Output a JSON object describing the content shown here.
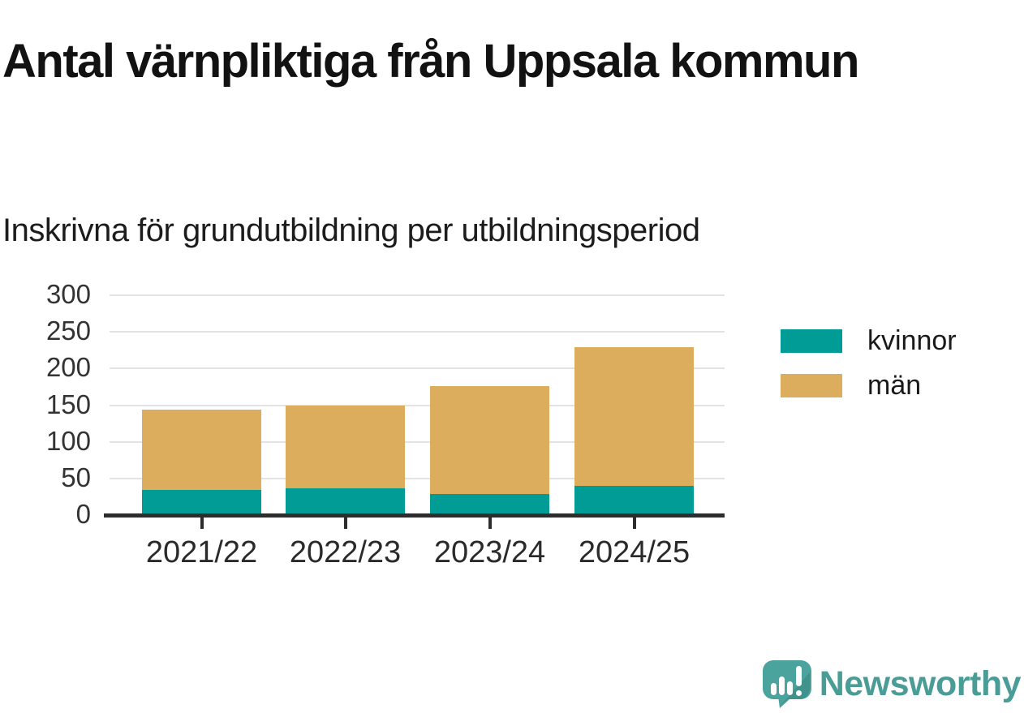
{
  "header": {
    "title": "Antal värnpliktiga från Uppsala kommun",
    "subtitle": "Inskrivna för grundutbildning per utbildningsperiod"
  },
  "chart_data": {
    "type": "bar",
    "stacked": true,
    "title": "Antal värnpliktiga från Uppsala kommun",
    "subtitle": "Inskrivna för grundutbildning per utbildningsperiod",
    "categories": [
      "2021/22",
      "2022/23",
      "2023/24",
      "2024/25"
    ],
    "series": [
      {
        "name": "kvinnor",
        "color": "#009c95",
        "values": [
          34,
          37,
          29,
          40
        ]
      },
      {
        "name": "män",
        "color": "#dcad5c",
        "values": [
          110,
          113,
          147,
          189
        ]
      }
    ],
    "stack_totals": [
      144,
      150,
      176,
      229
    ],
    "xlabel": "",
    "ylabel": "",
    "ylim": [
      0,
      300
    ],
    "yticks": [
      0,
      50,
      100,
      150,
      200,
      250,
      300
    ],
    "grid": true,
    "legend_position": "right"
  },
  "colors": {
    "kvinnor": "#009c95",
    "man": "#dcad5c",
    "gridline": "#e3e3e3",
    "axis": "#2d2d2d",
    "title_text": "#121212",
    "brand_teal": "#4aa39c"
  },
  "footer": {
    "brand": "Newsworthy"
  }
}
